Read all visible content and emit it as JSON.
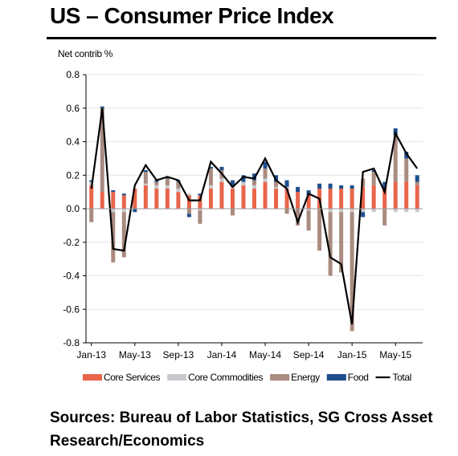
{
  "page": {
    "title": "US – Consumer Price Index",
    "sources": "Sources: Bureau of Labor Statistics, SG Cross Asset Research/Economics"
  },
  "chart_data": {
    "type": "bar",
    "stacked": true,
    "ylabel": "Net contrib %",
    "ylim": [
      -0.8,
      0.8
    ],
    "yticks": [
      "0.8",
      "0.6",
      "0.4",
      "0.2",
      "0.0",
      "-0.2",
      "-0.4",
      "-0.6",
      "-0.8"
    ],
    "x": [
      "Jan-13",
      "Feb-13",
      "Mar-13",
      "Apr-13",
      "May-13",
      "Jun-13",
      "Jul-13",
      "Aug-13",
      "Sep-13",
      "Oct-13",
      "Nov-13",
      "Dec-13",
      "Jan-14",
      "Feb-14",
      "Mar-14",
      "Apr-14",
      "May-14",
      "Jun-14",
      "Jul-14",
      "Aug-14",
      "Sep-14",
      "Oct-14",
      "Nov-14",
      "Dec-14",
      "Jan-15",
      "Feb-15",
      "Mar-15",
      "Apr-15",
      "May-15",
      "Jun-15",
      "Jul-15"
    ],
    "xticks": [
      "Jan-13",
      "May-13",
      "Sep-13",
      "Jan-14",
      "May-14",
      "Sep-14",
      "Jan-15",
      "May-15"
    ],
    "legend_position": "bottom",
    "series": [
      {
        "name": "Core Services",
        "kind": "bar",
        "color": "#e8654a",
        "values": [
          0.14,
          0.1,
          0.1,
          0.08,
          0.12,
          0.14,
          0.12,
          0.12,
          0.1,
          0.08,
          0.08,
          0.12,
          0.16,
          0.12,
          0.14,
          0.12,
          0.16,
          0.12,
          0.12,
          0.1,
          0.08,
          0.12,
          0.12,
          0.12,
          0.12,
          0.13,
          0.14,
          0.12,
          0.16,
          0.16,
          0.14
        ]
      },
      {
        "name": "Core Commodities",
        "kind": "bar",
        "color": "#c8c9cd",
        "values": [
          0.02,
          0.0,
          -0.02,
          -0.02,
          0.0,
          0.01,
          0.02,
          0.02,
          0.02,
          0.01,
          -0.01,
          0.02,
          0.02,
          0.01,
          0.02,
          0.02,
          0.02,
          0.01,
          0.01,
          0.0,
          -0.01,
          0.0,
          -0.02,
          -0.02,
          -0.02,
          -0.02,
          -0.02,
          0.0,
          -0.02,
          -0.02,
          -0.02
        ]
      },
      {
        "name": "Energy",
        "kind": "bar",
        "color": "#a98b80",
        "values": [
          -0.08,
          0.5,
          -0.3,
          -0.27,
          0.0,
          0.07,
          0.02,
          0.04,
          0.04,
          -0.03,
          -0.08,
          0.1,
          0.05,
          -0.04,
          0.0,
          0.03,
          0.06,
          0.03,
          -0.03,
          -0.1,
          -0.12,
          -0.25,
          -0.38,
          -0.36,
          -0.71,
          0.05,
          0.08,
          -0.1,
          0.28,
          0.14,
          0.02
        ]
      },
      {
        "name": "Food",
        "kind": "bar",
        "color": "#1f4e8c",
        "values": [
          0.01,
          0.01,
          0.01,
          0.01,
          -0.02,
          0.01,
          0.01,
          0.01,
          0.01,
          -0.02,
          0.01,
          0.01,
          0.02,
          0.04,
          0.04,
          0.04,
          0.04,
          0.04,
          0.04,
          0.03,
          0.03,
          0.03,
          0.03,
          0.02,
          0.02,
          -0.03,
          0.01,
          0.04,
          0.04,
          0.04,
          0.04
        ]
      },
      {
        "name": "Total",
        "kind": "line",
        "color": "#000000",
        "values": [
          0.12,
          0.6,
          -0.24,
          -0.25,
          0.14,
          0.26,
          0.17,
          0.19,
          0.17,
          0.05,
          0.05,
          0.28,
          0.21,
          0.13,
          0.19,
          0.18,
          0.3,
          0.17,
          0.12,
          -0.08,
          0.09,
          0.06,
          -0.29,
          -0.33,
          -0.69,
          0.22,
          0.24,
          0.1,
          0.45,
          0.33,
          0.24
        ]
      }
    ]
  }
}
